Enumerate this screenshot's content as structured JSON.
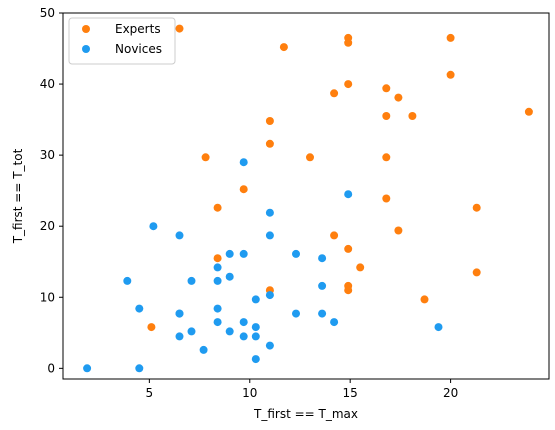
{
  "chart_data": {
    "type": "scatter",
    "title": "",
    "xlabel": "T_first == T_max",
    "ylabel": "T_first == T_tot",
    "xlim": [
      0.7,
      24.9
    ],
    "ylim": [
      -1.5,
      50
    ],
    "xticks": [
      5,
      10,
      15,
      20
    ],
    "yticks": [
      0,
      10,
      20,
      30,
      40,
      50
    ],
    "grid": false,
    "legend_position": "upper-left",
    "series": [
      {
        "name": "Experts",
        "color": "#ff7f0e",
        "points": [
          [
            5.1,
            5.8
          ],
          [
            6.5,
            47.8
          ],
          [
            7.8,
            29.7
          ],
          [
            8.4,
            15.5
          ],
          [
            8.4,
            22.6
          ],
          [
            9.7,
            25.2
          ],
          [
            11.0,
            11.0
          ],
          [
            11.0,
            31.6
          ],
          [
            11.0,
            34.8
          ],
          [
            11.7,
            45.2
          ],
          [
            13.0,
            29.7
          ],
          [
            14.2,
            18.7
          ],
          [
            14.2,
            38.7
          ],
          [
            14.9,
            11.0
          ],
          [
            14.9,
            11.6
          ],
          [
            14.9,
            16.8
          ],
          [
            14.9,
            40.0
          ],
          [
            14.9,
            45.8
          ],
          [
            14.9,
            46.5
          ],
          [
            15.5,
            14.2
          ],
          [
            16.8,
            23.9
          ],
          [
            16.8,
            29.7
          ],
          [
            16.8,
            35.5
          ],
          [
            16.8,
            39.4
          ],
          [
            17.4,
            19.4
          ],
          [
            17.4,
            38.1
          ],
          [
            18.1,
            35.5
          ],
          [
            18.7,
            9.7
          ],
          [
            20.0,
            41.3
          ],
          [
            20.0,
            46.5
          ],
          [
            21.3,
            13.5
          ],
          [
            21.3,
            22.6
          ],
          [
            23.9,
            36.1
          ]
        ]
      },
      {
        "name": "Novices",
        "color": "#1f9bf0",
        "points": [
          [
            1.9,
            0.0
          ],
          [
            3.9,
            12.3
          ],
          [
            4.5,
            0.0
          ],
          [
            4.5,
            8.4
          ],
          [
            5.2,
            20.0
          ],
          [
            6.5,
            4.5
          ],
          [
            6.5,
            7.7
          ],
          [
            6.5,
            7.7
          ],
          [
            6.5,
            18.7
          ],
          [
            7.1,
            5.2
          ],
          [
            7.1,
            12.3
          ],
          [
            7.7,
            2.6
          ],
          [
            8.4,
            6.5
          ],
          [
            8.4,
            8.4
          ],
          [
            8.4,
            12.3
          ],
          [
            8.4,
            14.2
          ],
          [
            9.0,
            5.2
          ],
          [
            9.0,
            12.9
          ],
          [
            9.0,
            16.1
          ],
          [
            9.7,
            4.5
          ],
          [
            9.7,
            6.5
          ],
          [
            9.7,
            16.1
          ],
          [
            9.7,
            29.0
          ],
          [
            10.3,
            1.3
          ],
          [
            10.3,
            4.5
          ],
          [
            10.3,
            5.8
          ],
          [
            10.3,
            9.7
          ],
          [
            11.0,
            3.2
          ],
          [
            11.0,
            10.3
          ],
          [
            11.0,
            18.7
          ],
          [
            11.0,
            21.9
          ],
          [
            12.3,
            7.7
          ],
          [
            12.3,
            16.1
          ],
          [
            13.6,
            7.7
          ],
          [
            13.6,
            11.6
          ],
          [
            13.6,
            15.5
          ],
          [
            14.2,
            6.5
          ],
          [
            14.9,
            24.5
          ],
          [
            19.4,
            5.8
          ]
        ]
      }
    ]
  }
}
